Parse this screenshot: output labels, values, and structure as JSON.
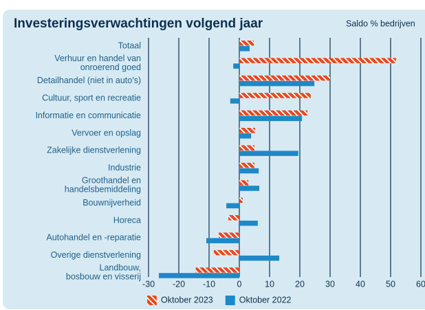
{
  "chart_data": {
    "type": "hbar",
    "title": "Investeringsverwachtingen volgend jaar",
    "subtitle": "Saldo % bedrijven",
    "categories": [
      "Totaal",
      "Verhuur en handel van\nonroerend goed",
      "Detailhandel (niet in auto's)",
      "Cultuur, sport en recreatie",
      "Informatie en communicatie",
      "Vervoer en opslag",
      "Zakelijke dienstverlening",
      "Industrie",
      "Groothandel en\nhandelsbemiddeling",
      "Bouwnijverheid",
      "Horeca",
      "Autohandel en -reparatie",
      "Overige dienstverlening",
      "Landbouw,\nbosbouw en visserij"
    ],
    "series": [
      {
        "name": "Oktober 2023",
        "color": "#e8461e",
        "pattern": "hatch",
        "values": [
          4.8,
          51.8,
          30,
          23.6,
          22.5,
          5.2,
          5,
          5,
          3,
          1.1,
          -3.6,
          -6.8,
          -8.4,
          -14.4
        ]
      },
      {
        "name": "Oktober 2022",
        "color": "#1e88c8",
        "values": [
          3.4,
          -2,
          24.8,
          -3,
          20.7,
          3.9,
          19.5,
          6.4,
          6.6,
          -4.3,
          6.1,
          -10.9,
          13.2,
          -26.6
        ]
      }
    ],
    "xlim": [
      -30,
      60
    ],
    "xticks": [
      -30,
      -20,
      -10,
      0,
      10,
      20,
      30,
      40,
      50,
      60
    ],
    "grid": true
  }
}
